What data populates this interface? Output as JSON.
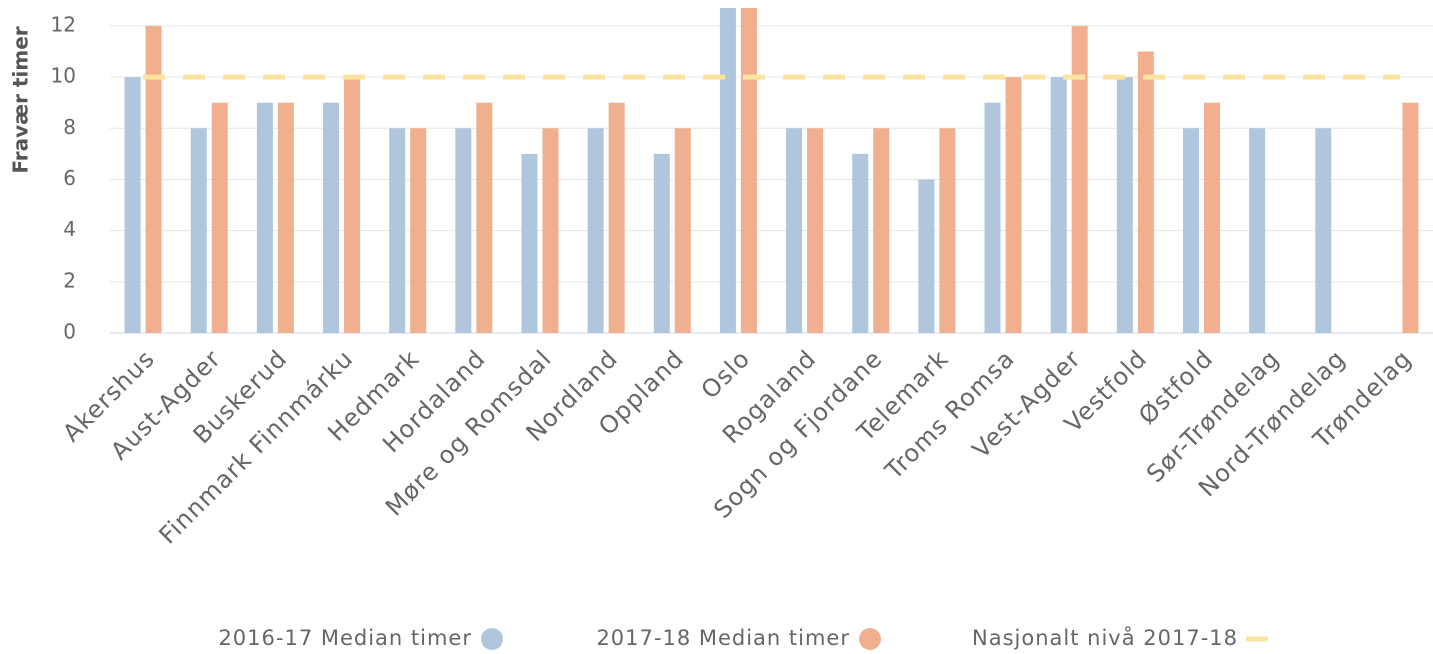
{
  "chart_data": {
    "type": "bar",
    "y_label": "Fravær timer",
    "categories": [
      "Akershus",
      "Aust-Agder",
      "Buskerud",
      "Finnmark Finnmárku",
      "Hedmark",
      "Hordaland",
      "Møre og Romsdal",
      "Nordland",
      "Oppland",
      "Oslo",
      "Rogaland",
      "Sogn og Fjordane",
      "Telemark",
      "Troms Romsa",
      "Vest-Agder",
      "Vestfold",
      "Østfold",
      "Sør-Trøndelag",
      "Nord-Trøndelag",
      "Trøndelag"
    ],
    "series": [
      {
        "name": "2016-17 Median timer",
        "color": "#afc6dc",
        "type": "bar",
        "values": [
          10,
          8,
          9,
          9,
          8,
          8,
          7,
          8,
          7,
          13,
          8,
          7,
          6,
          9,
          10,
          10,
          8,
          8,
          8,
          null
        ]
      },
      {
        "name": "2017-18 Median timer",
        "color": "#f0b08f",
        "type": "bar",
        "values": [
          12,
          9,
          9,
          10,
          8,
          9,
          8,
          9,
          8,
          13,
          8,
          8,
          8,
          10,
          12,
          11,
          9,
          null,
          null,
          9
        ]
      },
      {
        "name": "Nasjonalt nivå 2017-18",
        "color": "#fbe3a0",
        "type": "line",
        "values": [
          10,
          10,
          10,
          10,
          10,
          10,
          10,
          10,
          10,
          10,
          10,
          10,
          10,
          10,
          10,
          10,
          10,
          10,
          10,
          10
        ]
      }
    ],
    "ylim": [
      0,
      12.7
    ],
    "yticks": [
      0,
      2,
      4,
      6,
      8,
      10,
      12
    ],
    "grid": true
  }
}
